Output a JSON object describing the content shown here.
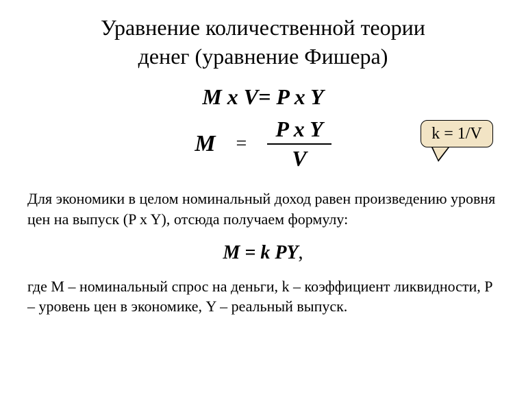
{
  "title": {
    "line1": "Уравнение количественной теории",
    "line2": "денег (уравнение Фишера)"
  },
  "equations": {
    "main": "M x V= P x Y",
    "fraction": {
      "left": "M",
      "equals": "=",
      "numerator": "P x Y",
      "denominator": "V"
    },
    "short": "M = k PY",
    "comma": ","
  },
  "callout": {
    "text": "k = 1/V",
    "bg_color": "#f2e4c5",
    "border_color": "#000000",
    "border_radius": 10
  },
  "paragraphs": {
    "p1": "Для экономики в целом номинальный доход равен произведению уровня цен на выпуск (P x Y), отсюда получаем формулу:",
    "p2": "где М – номинальный спрос на деньги, k – коэффициент ликвидности, Р –  уровень цен в экономике, Y – реальный выпуск."
  },
  "styling": {
    "background_color": "#ffffff",
    "text_color": "#000000",
    "title_fontsize": 32,
    "equation_fontsize": 32,
    "body_fontsize": 22,
    "font_family": "Times New Roman"
  }
}
